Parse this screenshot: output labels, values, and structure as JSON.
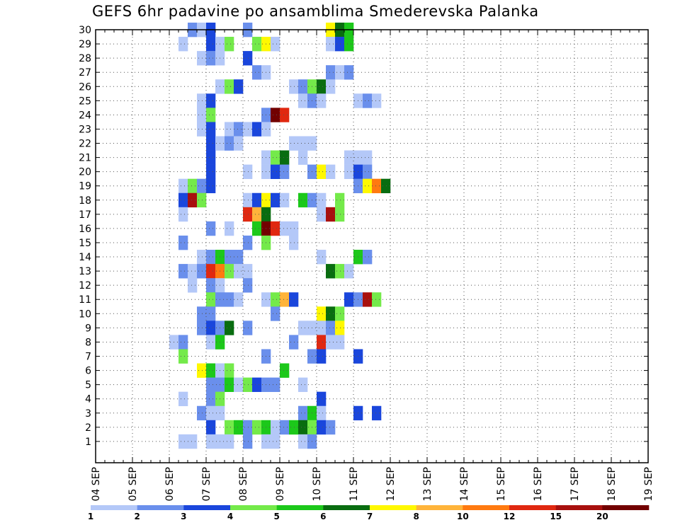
{
  "chart_data": {
    "type": "heatmap",
    "title": "GEFS 6hr padavine po ansamblima Smederevska Palanka",
    "x_tick_labels": [
      "04 SEP",
      "05 SEP",
      "06 SEP",
      "07 SEP",
      "08 SEP",
      "09 SEP",
      "10 SEP",
      "11 SEP",
      "12 SEP",
      "13 SEP",
      "14 SEP",
      "15 SEP",
      "16 SEP",
      "17 SEP",
      "18 SEP",
      "19 SEP"
    ],
    "y_tick_labels": [
      "1",
      "2",
      "3",
      "4",
      "5",
      "6",
      "7",
      "8",
      "9",
      "10",
      "11",
      "12",
      "13",
      "14",
      "15",
      "16",
      "17",
      "18",
      "19",
      "20",
      "21",
      "22",
      "23",
      "24",
      "25",
      "26",
      "27",
      "28",
      "29",
      "30"
    ],
    "time_steps_per_day": 4,
    "grid": true,
    "colorbar": {
      "position": "bottom",
      "labels": [
        "1",
        "2",
        "3",
        "4",
        "5",
        "6",
        "7",
        "8",
        "10",
        "12",
        "15",
        "20"
      ],
      "colors": [
        "#b4c8f8",
        "#6a8fec",
        "#1a46dc",
        "#74ea4a",
        "#1cc81a",
        "#096d10",
        "#fff800",
        "#ffb43a",
        "#ff7a10",
        "#e02810",
        "#a8100e",
        "#720000"
      ]
    },
    "cells_note_format": "[member, time_step_index, color_class_index]",
    "cells": [
      [
        30,
        10,
        1
      ],
      [
        30,
        11,
        0
      ],
      [
        30,
        12,
        2
      ],
      [
        30,
        16,
        1
      ],
      [
        30,
        25,
        6
      ],
      [
        30,
        26,
        5
      ],
      [
        30,
        27,
        4
      ],
      [
        29,
        9,
        0
      ],
      [
        29,
        12,
        2
      ],
      [
        29,
        13,
        0
      ],
      [
        29,
        14,
        3
      ],
      [
        29,
        17,
        3
      ],
      [
        29,
        18,
        6
      ],
      [
        29,
        19,
        0
      ],
      [
        29,
        25,
        0
      ],
      [
        29,
        26,
        2
      ],
      [
        29,
        27,
        4
      ],
      [
        28,
        11,
        0
      ],
      [
        28,
        12,
        1
      ],
      [
        28,
        13,
        0
      ],
      [
        28,
        16,
        2
      ],
      [
        27,
        17,
        1
      ],
      [
        27,
        18,
        0
      ],
      [
        27,
        25,
        1
      ],
      [
        27,
        26,
        0
      ],
      [
        27,
        27,
        1
      ],
      [
        26,
        13,
        0
      ],
      [
        26,
        14,
        3
      ],
      [
        26,
        15,
        2
      ],
      [
        26,
        21,
        0
      ],
      [
        26,
        22,
        1
      ],
      [
        26,
        23,
        3
      ],
      [
        26,
        24,
        5
      ],
      [
        26,
        25,
        0
      ],
      [
        25,
        11,
        0
      ],
      [
        25,
        12,
        2
      ],
      [
        25,
        22,
        0
      ],
      [
        25,
        23,
        1
      ],
      [
        25,
        24,
        0
      ],
      [
        25,
        28,
        0
      ],
      [
        25,
        29,
        1
      ],
      [
        25,
        30,
        0
      ],
      [
        24,
        11,
        0
      ],
      [
        24,
        12,
        3
      ],
      [
        24,
        18,
        1
      ],
      [
        24,
        19,
        11
      ],
      [
        24,
        20,
        9
      ],
      [
        23,
        11,
        0
      ],
      [
        23,
        12,
        2
      ],
      [
        23,
        14,
        0
      ],
      [
        23,
        15,
        1
      ],
      [
        23,
        16,
        0
      ],
      [
        23,
        17,
        2
      ],
      [
        23,
        18,
        0
      ],
      [
        22,
        12,
        2
      ],
      [
        22,
        13,
        0
      ],
      [
        22,
        14,
        1
      ],
      [
        22,
        15,
        0
      ],
      [
        22,
        21,
        0
      ],
      [
        22,
        22,
        0
      ],
      [
        22,
        23,
        0
      ],
      [
        21,
        12,
        2
      ],
      [
        21,
        18,
        0
      ],
      [
        21,
        19,
        3
      ],
      [
        21,
        20,
        5
      ],
      [
        21,
        22,
        0
      ],
      [
        21,
        27,
        0
      ],
      [
        21,
        28,
        0
      ],
      [
        21,
        29,
        0
      ],
      [
        20,
        12,
        2
      ],
      [
        20,
        16,
        0
      ],
      [
        20,
        18,
        0
      ],
      [
        20,
        19,
        2
      ],
      [
        20,
        20,
        1
      ],
      [
        20,
        23,
        1
      ],
      [
        20,
        24,
        6
      ],
      [
        20,
        25,
        0
      ],
      [
        20,
        27,
        0
      ],
      [
        20,
        28,
        2
      ],
      [
        20,
        29,
        1
      ],
      [
        19,
        9,
        0
      ],
      [
        19,
        10,
        3
      ],
      [
        19,
        11,
        1
      ],
      [
        19,
        12,
        2
      ],
      [
        19,
        28,
        1
      ],
      [
        19,
        29,
        6
      ],
      [
        19,
        30,
        8
      ],
      [
        19,
        31,
        5
      ],
      [
        18,
        9,
        2
      ],
      [
        18,
        10,
        10
      ],
      [
        18,
        11,
        3
      ],
      [
        18,
        16,
        0
      ],
      [
        18,
        17,
        2
      ],
      [
        18,
        18,
        6
      ],
      [
        18,
        19,
        2
      ],
      [
        18,
        20,
        0
      ],
      [
        18,
        22,
        4
      ],
      [
        18,
        23,
        1
      ],
      [
        18,
        24,
        0
      ],
      [
        18,
        26,
        3
      ],
      [
        17,
        9,
        0
      ],
      [
        17,
        16,
        9
      ],
      [
        17,
        17,
        7
      ],
      [
        17,
        18,
        5
      ],
      [
        17,
        24,
        0
      ],
      [
        17,
        25,
        10
      ],
      [
        17,
        26,
        3
      ],
      [
        16,
        12,
        1
      ],
      [
        16,
        14,
        0
      ],
      [
        16,
        17,
        4
      ],
      [
        16,
        18,
        11
      ],
      [
        16,
        19,
        9
      ],
      [
        16,
        20,
        0
      ],
      [
        16,
        21,
        0
      ],
      [
        15,
        9,
        1
      ],
      [
        15,
        16,
        1
      ],
      [
        15,
        18,
        3
      ],
      [
        15,
        21,
        0
      ],
      [
        14,
        11,
        0
      ],
      [
        14,
        12,
        1
      ],
      [
        14,
        13,
        4
      ],
      [
        14,
        14,
        1
      ],
      [
        14,
        15,
        1
      ],
      [
        14,
        24,
        0
      ],
      [
        14,
        28,
        4
      ],
      [
        14,
        29,
        1
      ],
      [
        13,
        9,
        1
      ],
      [
        13,
        10,
        0
      ],
      [
        13,
        11,
        1
      ],
      [
        13,
        12,
        9
      ],
      [
        13,
        13,
        8
      ],
      [
        13,
        14,
        3
      ],
      [
        13,
        15,
        0
      ],
      [
        13,
        16,
        0
      ],
      [
        13,
        25,
        5
      ],
      [
        13,
        26,
        3
      ],
      [
        13,
        27,
        0
      ],
      [
        12,
        10,
        0
      ],
      [
        12,
        12,
        1
      ],
      [
        12,
        13,
        0
      ],
      [
        12,
        16,
        1
      ],
      [
        11,
        12,
        3
      ],
      [
        11,
        13,
        1
      ],
      [
        11,
        14,
        1
      ],
      [
        11,
        15,
        0
      ],
      [
        11,
        18,
        0
      ],
      [
        11,
        19,
        3
      ],
      [
        11,
        20,
        7
      ],
      [
        11,
        21,
        2
      ],
      [
        11,
        27,
        2
      ],
      [
        11,
        28,
        1
      ],
      [
        11,
        29,
        10
      ],
      [
        11,
        30,
        3
      ],
      [
        10,
        11,
        1
      ],
      [
        10,
        12,
        1
      ],
      [
        10,
        19,
        1
      ],
      [
        10,
        24,
        6
      ],
      [
        10,
        25,
        5
      ],
      [
        10,
        26,
        3
      ],
      [
        9,
        11,
        1
      ],
      [
        9,
        12,
        2
      ],
      [
        9,
        13,
        1
      ],
      [
        9,
        14,
        5
      ],
      [
        9,
        16,
        1
      ],
      [
        9,
        22,
        0
      ],
      [
        9,
        23,
        0
      ],
      [
        9,
        24,
        0
      ],
      [
        9,
        25,
        1
      ],
      [
        9,
        26,
        6
      ],
      [
        8,
        8,
        0
      ],
      [
        8,
        9,
        1
      ],
      [
        8,
        12,
        0
      ],
      [
        8,
        13,
        4
      ],
      [
        8,
        21,
        1
      ],
      [
        8,
        24,
        9
      ],
      [
        8,
        25,
        0
      ],
      [
        8,
        26,
        0
      ],
      [
        7,
        9,
        3
      ],
      [
        7,
        18,
        1
      ],
      [
        7,
        23,
        1
      ],
      [
        7,
        24,
        2
      ],
      [
        7,
        28,
        2
      ],
      [
        6,
        11,
        6
      ],
      [
        6,
        12,
        4
      ],
      [
        6,
        13,
        0
      ],
      [
        6,
        14,
        3
      ],
      [
        6,
        20,
        4
      ],
      [
        5,
        12,
        1
      ],
      [
        5,
        13,
        1
      ],
      [
        5,
        14,
        4
      ],
      [
        5,
        15,
        0
      ],
      [
        5,
        16,
        3
      ],
      [
        5,
        17,
        2
      ],
      [
        5,
        18,
        1
      ],
      [
        5,
        19,
        1
      ],
      [
        5,
        22,
        0
      ],
      [
        4,
        9,
        0
      ],
      [
        4,
        12,
        1
      ],
      [
        4,
        13,
        3
      ],
      [
        4,
        24,
        2
      ],
      [
        3,
        11,
        1
      ],
      [
        3,
        12,
        0
      ],
      [
        3,
        13,
        0
      ],
      [
        3,
        22,
        1
      ],
      [
        3,
        23,
        4
      ],
      [
        3,
        24,
        0
      ],
      [
        3,
        28,
        2
      ],
      [
        3,
        30,
        2
      ],
      [
        2,
        12,
        2
      ],
      [
        2,
        14,
        3
      ],
      [
        2,
        15,
        4
      ],
      [
        2,
        16,
        1
      ],
      [
        2,
        17,
        3
      ],
      [
        2,
        18,
        4
      ],
      [
        2,
        19,
        0
      ],
      [
        2,
        20,
        1
      ],
      [
        2,
        21,
        4
      ],
      [
        2,
        22,
        5
      ],
      [
        2,
        23,
        3
      ],
      [
        2,
        24,
        2
      ],
      [
        2,
        25,
        1
      ],
      [
        1,
        9,
        0
      ],
      [
        1,
        10,
        0
      ],
      [
        1,
        12,
        0
      ],
      [
        1,
        13,
        0
      ],
      [
        1,
        14,
        0
      ],
      [
        1,
        16,
        1
      ],
      [
        1,
        18,
        0
      ],
      [
        1,
        19,
        0
      ],
      [
        1,
        22,
        0
      ],
      [
        1,
        23,
        1
      ]
    ]
  }
}
